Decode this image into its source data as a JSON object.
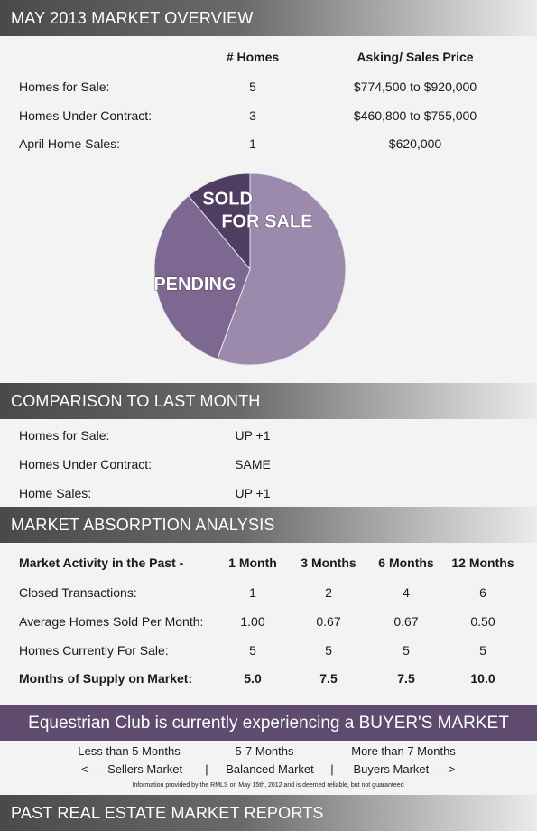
{
  "overview": {
    "title": "MAY 2013 MARKET OVERVIEW",
    "col_homes": "# Homes",
    "col_price": "Asking/ Sales Price",
    "rows": [
      {
        "label": "Homes for Sale:",
        "homes": "5",
        "price": "$774,500 to $920,000"
      },
      {
        "label": "Homes Under Contract:",
        "homes": "3",
        "price": "$460,800 to $755,000"
      },
      {
        "label": "April Home Sales:",
        "homes": "1",
        "price": "$620,000"
      }
    ]
  },
  "chart_data": {
    "type": "pie",
    "slices": [
      {
        "label": "FOR SALE",
        "value": 5,
        "color": "#9b8aac"
      },
      {
        "label": "PENDING",
        "value": 3,
        "color": "#7d6891"
      },
      {
        "label": "SOLD",
        "value": 1,
        "color": "#4f3e62"
      }
    ]
  },
  "comparison": {
    "title": "COMPARISON TO LAST MONTH",
    "rows": [
      {
        "label": "Homes for Sale:",
        "value": "UP +1"
      },
      {
        "label": "Homes Under Contract:",
        "value": "SAME"
      },
      {
        "label": "Home Sales:",
        "value": "UP +1"
      }
    ]
  },
  "absorption": {
    "title": "MARKET ABSORPTION ANALYSIS",
    "header": {
      "label": "Market Activity in the Past -",
      "m1": "1 Month",
      "m3": "3 Months",
      "m6": "6 Months",
      "m12": "12 Months"
    },
    "rows": [
      {
        "label": "Closed Transactions:",
        "m1": "1",
        "m3": "2",
        "m6": "4",
        "m12": "6"
      },
      {
        "label": "Average Homes Sold Per Month:",
        "m1": "1.00",
        "m3": "0.67",
        "m6": "0.67",
        "m12": "0.50"
      },
      {
        "label": "Homes Currently For Sale:",
        "m1": "5",
        "m3": "5",
        "m6": "5",
        "m12": "5"
      },
      {
        "label": "Months of Supply on Market:",
        "m1": "5.0",
        "m3": "7.5",
        "m6": "7.5",
        "m12": "10.0"
      }
    ]
  },
  "banner": {
    "text": "Equestrian Club is currently experiencing a BUYER'S MARKET",
    "color": "#5e4b6e"
  },
  "legend": {
    "less": "Less than 5 Months",
    "mid": "5-7 Months",
    "more": "More than 7 Months",
    "sellers": "<-----Sellers Market",
    "sep1": "|",
    "balanced": "Balanced Market",
    "sep2": "|",
    "buyers": "Buyers Market----->"
  },
  "disclaimer": "Information provided by the RMLS on May 15th, 2012 and is deemed reliable, but not guaranteed",
  "past_reports": {
    "title": "PAST REAL ESTATE MARKET REPORTS"
  }
}
